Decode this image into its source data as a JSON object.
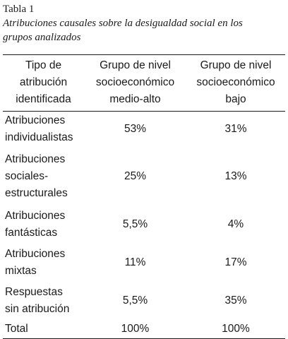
{
  "caption": {
    "label": "Tabla 1",
    "title_line1": "Atribuciones causales sobre la desigualdad social en los",
    "title_line2": "grupos analizados"
  },
  "table": {
    "headers": [
      [
        "Tipo de",
        "atribución",
        "identificada"
      ],
      [
        "Grupo de nivel",
        "socioeconómico",
        "medio-alto"
      ],
      [
        "Grupo de nivel",
        "socioeconómico",
        "bajo"
      ]
    ],
    "rows": [
      {
        "label": [
          "Atribuciones",
          "individualistas"
        ],
        "medio_alto": "53%",
        "bajo": "31%"
      },
      {
        "label": [
          "Atribuciones",
          "sociales-",
          "estructurales"
        ],
        "medio_alto": "25%",
        "bajo": "13%"
      },
      {
        "label": [
          "Atribuciones",
          "fantásticas"
        ],
        "medio_alto": "5,5%",
        "bajo": "4%"
      },
      {
        "label": [
          "Atribuciones",
          "mixtas"
        ],
        "medio_alto": "11%",
        "bajo": "17%"
      },
      {
        "label": [
          "Respuestas",
          "sin atribución"
        ],
        "medio_alto": "5,5%",
        "bajo": "35%"
      },
      {
        "label": [
          "Total"
        ],
        "medio_alto": "100%",
        "bajo": "100%"
      }
    ]
  }
}
